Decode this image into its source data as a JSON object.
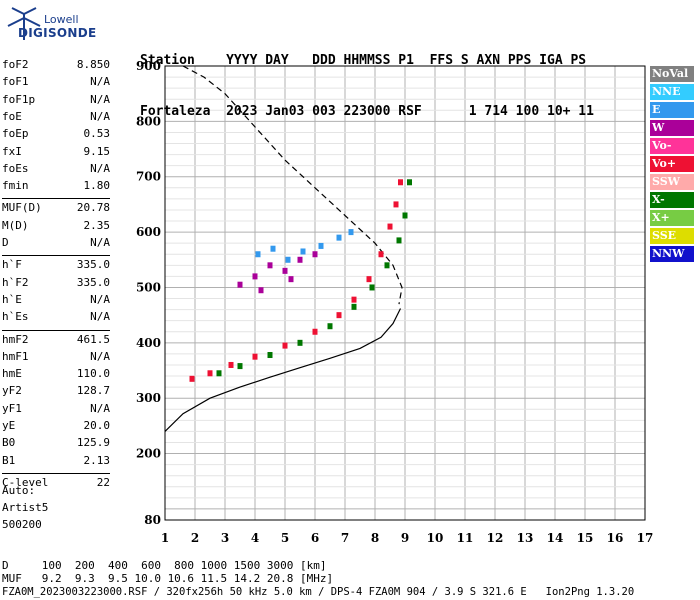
{
  "logo": {
    "line1": "Lowell",
    "line2": "DIGISONDE"
  },
  "header": {
    "line1": "Station    YYYY DAY   DDD HHMMSS P1  FFS S AXN PPS IGA PS",
    "line2": "Fortaleza  2023 Jan03 003 223000 RSF      1 714 100 10+ 11"
  },
  "params": [
    {
      "k": "foF2",
      "v": "8.850"
    },
    {
      "k": "foF1",
      "v": "N/A"
    },
    {
      "k": "foF1p",
      "v": "N/A"
    },
    {
      "k": "foE",
      "v": "N/A"
    },
    {
      "k": "foEp",
      "v": "0.53"
    },
    {
      "k": "fxI",
      "v": "9.15"
    },
    {
      "k": "foEs",
      "v": "N/A"
    },
    {
      "k": "fmin",
      "v": "1.80"
    },
    {
      "k": "MUF(D)",
      "v": "20.78"
    },
    {
      "k": "M(D)",
      "v": "2.35"
    },
    {
      "k": "D",
      "v": "N/A"
    },
    {
      "k": "h`F",
      "v": "335.0"
    },
    {
      "k": "h`F2",
      "v": "335.0"
    },
    {
      "k": "h`E",
      "v": "N/A"
    },
    {
      "k": "h`Es",
      "v": "N/A"
    },
    {
      "k": "hmF2",
      "v": "461.5"
    },
    {
      "k": "hmF1",
      "v": "N/A"
    },
    {
      "k": "hmE",
      "v": "110.0"
    },
    {
      "k": "yF2",
      "v": "128.7"
    },
    {
      "k": "yF1",
      "v": "N/A"
    },
    {
      "k": "yE",
      "v": "20.0"
    },
    {
      "k": "B0",
      "v": "125.9"
    },
    {
      "k": "B1",
      "v": "2.13"
    },
    {
      "k": "C-level",
      "v": "22"
    }
  ],
  "auto": {
    "l1": "Auto:",
    "l2": "Artist5",
    "l3": "500200"
  },
  "footer": {
    "d_row": "D     100  200  400  600  800 1000 1500 3000 [km]",
    "muf_row": "MUF   9.2  9.3  9.5 10.0 10.6 11.5 14.2 20.8 [MHz]",
    "file_row": "FZA0M_2023003223000.RSF / 320fx256h 50 kHz 5.0 km / DPS-4 FZA0M 904 / 3.9 S 321.6 E   Ion2Png 1.3.20"
  },
  "legend": [
    {
      "label": "NoVal",
      "color": "#808080"
    },
    {
      "label": "NNE",
      "color": "#33ccff"
    },
    {
      "label": "E",
      "color": "#3399ee"
    },
    {
      "label": "W",
      "color": "#aa0099"
    },
    {
      "label": "Vo-",
      "color": "#ff3399"
    },
    {
      "label": "Vo+",
      "color": "#ee1133"
    },
    {
      "label": "SSW",
      "color": "#ffaaaa"
    },
    {
      "label": "X-",
      "color": "#007700"
    },
    {
      "label": "X+",
      "color": "#77cc44"
    },
    {
      "label": "SSE",
      "color": "#dddd00"
    },
    {
      "label": "NNW",
      "color": "#1111cc"
    }
  ],
  "chart_data": {
    "type": "scatter",
    "xlim": [
      1,
      17
    ],
    "ylim": [
      80,
      900
    ],
    "xticks": [
      1,
      2,
      3,
      4,
      5,
      6,
      7,
      8,
      9,
      10,
      11,
      12,
      13,
      14,
      15,
      16,
      17
    ],
    "yticks": [
      80,
      200,
      300,
      400,
      500,
      600,
      700,
      800,
      900
    ],
    "grid": true,
    "legend_position": "right",
    "series": [
      {
        "name": "Vo+",
        "points": [
          [
            1.9,
            335
          ],
          [
            2.5,
            345
          ],
          [
            3.2,
            360
          ],
          [
            4.0,
            375
          ],
          [
            5.0,
            395
          ],
          [
            6.0,
            420
          ],
          [
            6.8,
            450
          ],
          [
            7.3,
            478
          ],
          [
            7.8,
            515
          ],
          [
            8.2,
            560
          ],
          [
            8.5,
            610
          ],
          [
            8.7,
            650
          ],
          [
            8.85,
            690
          ]
        ]
      },
      {
        "name": "X-",
        "points": [
          [
            2.8,
            345
          ],
          [
            3.5,
            358
          ],
          [
            4.5,
            378
          ],
          [
            5.5,
            400
          ],
          [
            6.5,
            430
          ],
          [
            7.3,
            465
          ],
          [
            7.9,
            500
          ],
          [
            8.4,
            540
          ],
          [
            8.8,
            585
          ],
          [
            9.0,
            630
          ],
          [
            9.15,
            690
          ]
        ]
      },
      {
        "name": "W",
        "points": [
          [
            4.0,
            520
          ],
          [
            4.5,
            540
          ],
          [
            5.0,
            530
          ],
          [
            5.5,
            550
          ],
          [
            6.0,
            560
          ],
          [
            3.5,
            505
          ],
          [
            4.2,
            495
          ],
          [
            5.2,
            515
          ]
        ]
      },
      {
        "name": "E",
        "points": [
          [
            4.1,
            560
          ],
          [
            4.6,
            570
          ],
          [
            5.1,
            550
          ],
          [
            5.6,
            565
          ],
          [
            6.2,
            575
          ],
          [
            6.8,
            590
          ],
          [
            7.2,
            600
          ]
        ]
      }
    ],
    "curves": {
      "profile_solid": [
        [
          1.0,
          240
        ],
        [
          1.6,
          272
        ],
        [
          2.5,
          300
        ],
        [
          3.5,
          320
        ],
        [
          4.5,
          338
        ],
        [
          5.5,
          355
        ],
        [
          6.5,
          372
        ],
        [
          7.5,
          390
        ],
        [
          8.2,
          410
        ],
        [
          8.6,
          435
        ],
        [
          8.85,
          462
        ]
      ],
      "profile_dashed": [
        [
          1.6,
          900
        ],
        [
          2.3,
          880
        ],
        [
          3.0,
          850
        ],
        [
          4.0,
          790
        ],
        [
          5.0,
          730
        ],
        [
          6.0,
          680
        ],
        [
          7.0,
          630
        ],
        [
          8.0,
          580
        ],
        [
          8.6,
          540
        ],
        [
          8.9,
          500
        ],
        [
          8.8,
          470
        ]
      ]
    }
  }
}
